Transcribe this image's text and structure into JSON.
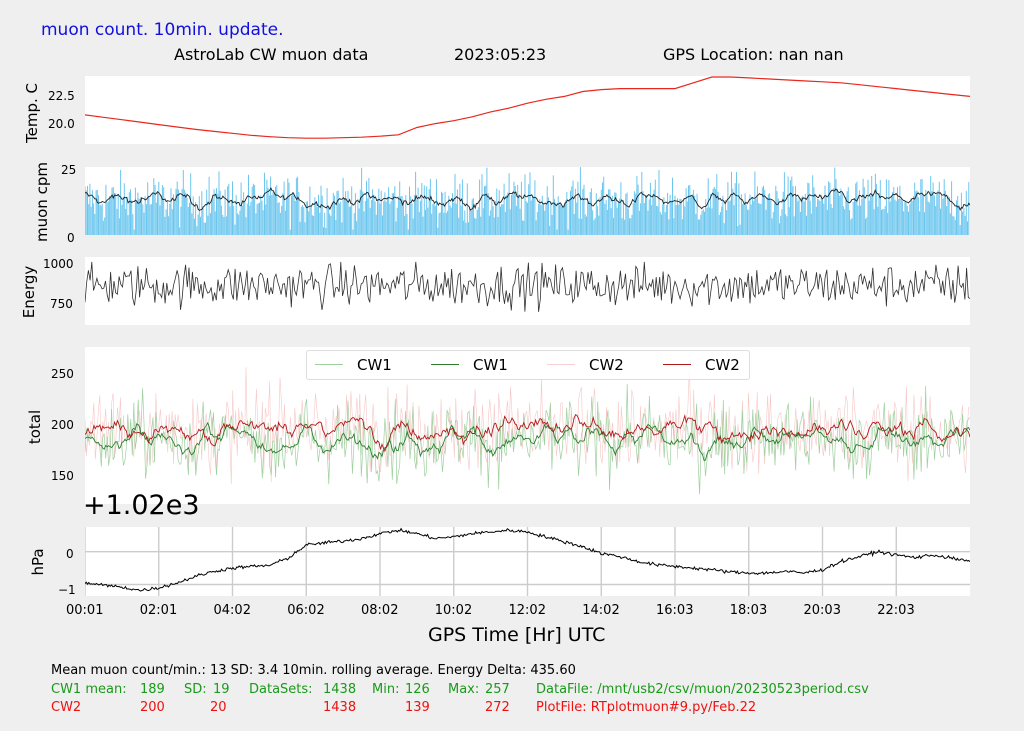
{
  "header": {
    "update_note": "muon count.  10min. update.",
    "title": "AstroLab CW muon data",
    "date": "2023:05:23",
    "gps_location": "GPS Location: nan   nan"
  },
  "colors": {
    "update_note": "#1010e0",
    "temp_line": "#e8281e",
    "muon_bars": "#6cc6ee",
    "muon_avg": "#202020",
    "energy": "#303030",
    "cw1_raw": "#9fd09f",
    "cw1_avg": "#2e7d2e",
    "cw2_raw": "#f4b0b0",
    "cw2_avg": "#b01818",
    "pressure": "#000000",
    "stats_green": "#1a9a1a",
    "stats_red": "#ee1111"
  },
  "chart_data": [
    {
      "type": "line",
      "ylabel": "Temp. C",
      "yticks": [
        "20.0",
        "22.5"
      ],
      "ylim": [
        17.5,
        24.5
      ],
      "x": [
        0,
        0.5,
        1,
        1.5,
        2,
        2.5,
        3,
        3.5,
        4,
        4.5,
        5,
        5.5,
        6,
        6.5,
        7,
        7.5,
        8,
        8.5,
        9,
        9.5,
        10,
        10.5,
        11,
        11.5,
        12,
        12.5,
        13,
        13.5,
        14,
        14.5,
        15,
        15.5,
        16,
        16.5,
        17,
        17.5,
        18,
        18.5,
        19,
        19.5,
        20,
        20.5,
        21,
        21.5,
        22,
        22.5,
        23,
        23.5,
        24
      ],
      "y": [
        20.5,
        20.25,
        20.0,
        19.75,
        19.5,
        19.25,
        19.0,
        18.8,
        18.6,
        18.4,
        18.25,
        18.15,
        18.1,
        18.1,
        18.15,
        18.2,
        18.3,
        18.45,
        19.2,
        19.6,
        19.9,
        20.3,
        20.8,
        21.2,
        21.7,
        22.1,
        22.4,
        22.9,
        23.1,
        23.2,
        23.2,
        23.2,
        23.2,
        23.8,
        24.4,
        24.4,
        24.3,
        24.2,
        24.1,
        24.0,
        23.9,
        23.8,
        23.6,
        23.4,
        23.2,
        23.0,
        22.8,
        22.6,
        22.4
      ]
    },
    {
      "type": "bar",
      "ylabel": "muon cpm",
      "yticks": [
        "0",
        "25"
      ],
      "ylim": [
        0,
        25
      ],
      "series": [
        {
          "values_note": "per-minute muon count",
          "mean": 13,
          "sd": 3.4
        },
        {
          "name": "",
          "values_note": "10min. rolling average",
          "level": 13
        }
      ]
    },
    {
      "type": "line",
      "ylabel": "Energy",
      "yticks": [
        "750",
        "1000"
      ],
      "ylim": [
        630,
        1050
      ],
      "mean": 875,
      "min": 645,
      "max": 1020
    },
    {
      "type": "line",
      "ylabel": "total",
      "yticks": [
        "150",
        "200",
        "250"
      ],
      "ylim": [
        128,
        278
      ],
      "legend": [
        "CW1",
        "CW1",
        "CW2",
        "CW2"
      ],
      "legend_position": "top-center",
      "series": [
        {
          "name": "CW1",
          "mean": 189,
          "sd": 19,
          "min": 126,
          "max": 257
        },
        {
          "name": "CW1",
          "mean": 189
        },
        {
          "name": "CW2",
          "mean": 200,
          "sd": 20,
          "min": 139,
          "max": 272
        },
        {
          "name": "CW2",
          "mean": 200
        }
      ]
    },
    {
      "type": "line",
      "ylabel": "hPa",
      "offset_label": "+1.02e3",
      "yticks": [
        "−1",
        "0"
      ],
      "ylim": [
        -1.35,
        0.75
      ],
      "grid": true,
      "x": [
        0,
        0.5,
        1,
        1.5,
        2,
        2.5,
        3,
        3.5,
        4,
        4.5,
        5,
        5.5,
        6,
        6.5,
        7,
        7.5,
        8,
        8.5,
        9,
        9.5,
        10,
        10.5,
        11,
        11.5,
        12,
        12.5,
        13,
        13.5,
        14,
        14.5,
        15,
        15.5,
        16,
        16.5,
        17,
        17.5,
        18,
        18.5,
        19,
        19.5,
        20,
        20.5,
        21,
        21.5,
        22,
        22.5,
        23,
        23.5,
        24
      ],
      "y": [
        -0.95,
        -1.02,
        -1.08,
        -1.18,
        -1.1,
        -0.95,
        -0.75,
        -0.6,
        -0.5,
        -0.45,
        -0.42,
        -0.2,
        0.2,
        0.27,
        0.32,
        0.4,
        0.55,
        0.65,
        0.55,
        0.4,
        0.45,
        0.55,
        0.6,
        0.65,
        0.6,
        0.45,
        0.3,
        0.15,
        -0.05,
        -0.15,
        -0.3,
        -0.4,
        -0.45,
        -0.5,
        -0.55,
        -0.62,
        -0.65,
        -0.65,
        -0.6,
        -0.65,
        -0.55,
        -0.3,
        -0.15,
        0.0,
        -0.1,
        -0.18,
        -0.1,
        -0.2,
        -0.3
      ]
    }
  ],
  "x_axis": {
    "ticks": [
      "00:01",
      "02:01",
      "04:02",
      "06:02",
      "08:02",
      "10:02",
      "12:02",
      "14:02",
      "16:03",
      "18:03",
      "20:03",
      "22:03"
    ],
    "tick_hours": [
      0,
      2,
      4,
      6,
      8,
      10,
      12,
      14,
      16,
      18,
      20,
      22
    ],
    "xlim": [
      0,
      24
    ],
    "label": "GPS Time  [Hr] UTC"
  },
  "stats": {
    "line1": "Mean muon count/min.: 13  SD: 3.4   10min. rolling average.    Energy Delta:  435.60",
    "cw1": {
      "label": "CW1 mean:",
      "mean": "189",
      "sd_label": "SD:",
      "sd": "19",
      "datasets_label": "DataSets:",
      "datasets": "1438",
      "min_label": "Min:",
      "min": "126",
      "max_label": "Max:",
      "max": "257",
      "file": "DataFile: /mnt/usb2/csv/muon/20230523period.csv"
    },
    "cw2": {
      "label": "CW2",
      "mean": "200",
      "sd": "20",
      "datasets": "1438",
      "min": "139",
      "max": "272",
      "file": "PlotFile: RTplotmuon#9.py/Feb.22"
    }
  }
}
